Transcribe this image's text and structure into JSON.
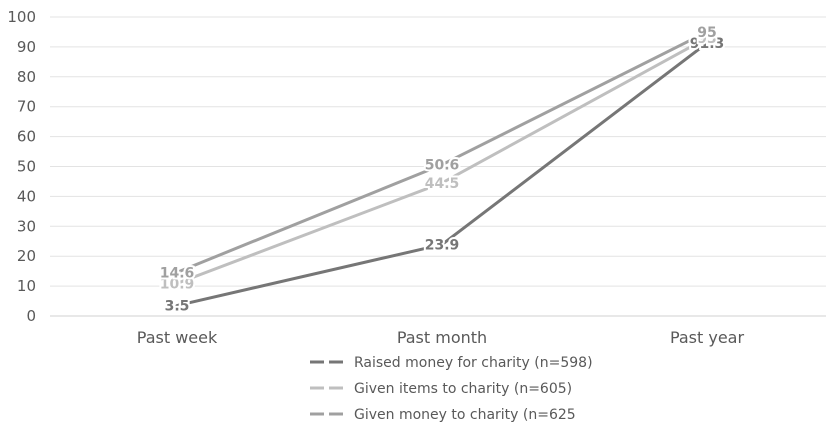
{
  "chart_data": {
    "type": "line",
    "title": "",
    "xlabel": "",
    "ylabel": "",
    "categories": [
      "Past week",
      "Past month",
      "Past year"
    ],
    "ylim": [
      0,
      100
    ],
    "yticks": [
      0,
      10,
      20,
      30,
      40,
      50,
      60,
      70,
      80,
      90,
      100
    ],
    "grid": true,
    "legend_position": "bottom",
    "series": [
      {
        "name": "Raised money for charity (n=598)",
        "values": [
          3.5,
          23.9,
          91.3
        ],
        "labels": [
          "3.5",
          "23.9",
          "91.3"
        ],
        "color": "#767676"
      },
      {
        "name": "Given items to charity (n=605)",
        "values": [
          10.9,
          44.5,
          93
        ],
        "labels": [
          "10.9",
          "44.5",
          "93"
        ],
        "color": "#bfbfbf"
      },
      {
        "name": "Given money to charity (n=625",
        "values": [
          14.6,
          50.6,
          95
        ],
        "labels": [
          "14.6",
          "50.6",
          "95"
        ],
        "color": "#a0a0a0"
      }
    ]
  }
}
